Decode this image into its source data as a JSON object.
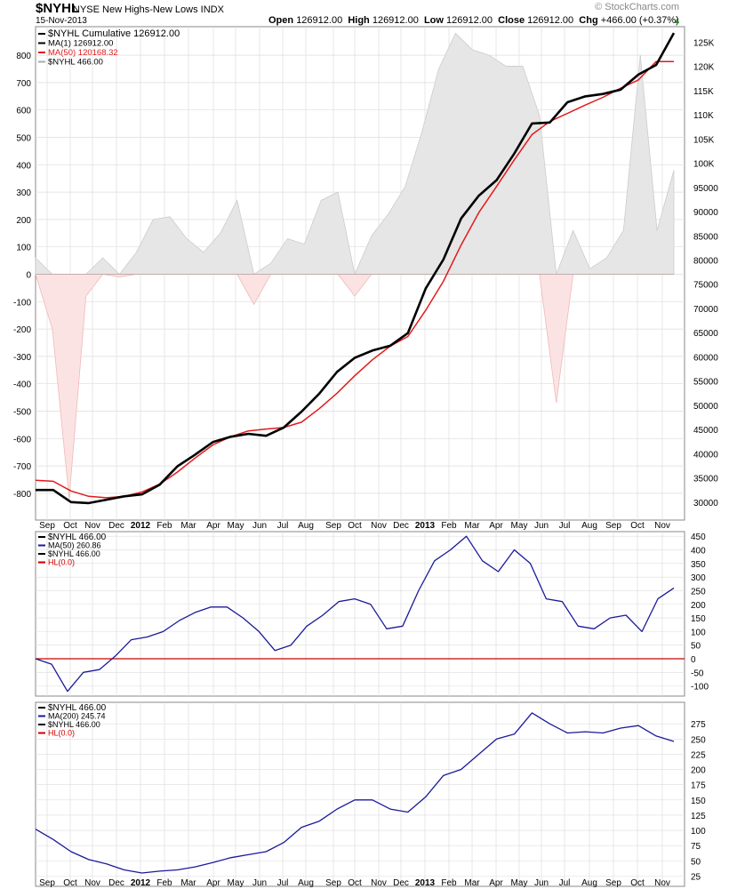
{
  "header": {
    "symbol": "$NYHL",
    "name": "NYSE New Highs-New Lows",
    "exchange": "INDX",
    "date": "15-Nov-2013",
    "brand": "© StockCharts.com",
    "quote": {
      "open_label": "Open",
      "open": "126912.00",
      "high_label": "High",
      "high": "126912.00",
      "low_label": "Low",
      "low": "126912.00",
      "close_label": "Close",
      "close": "126912.00",
      "chg_label": "Chg",
      "chg": "+466.00 (+0.37%)"
    }
  },
  "colors": {
    "cumulative": "#000000",
    "ma50": "#e31a1c",
    "hist_pos": "#cccccc",
    "hist_neg": "#f2b8b8",
    "ma_lines": "#1a1a99",
    "hl": "#cc0000",
    "grid": "#dddddd"
  },
  "chart_data": [
    {
      "type": "line",
      "legend": [
        "$NYHL  Cumulative 126912.00",
        "MA(1) 126912.00",
        "MA(50) 120168.32",
        "$NYHL  466.00"
      ],
      "x_ticks": [
        "Sep",
        "Oct",
        "Nov",
        "Dec",
        "2012",
        "Feb",
        "Mar",
        "Apr",
        "May",
        "Jun",
        "Jul",
        "Aug",
        "Sep",
        "Oct",
        "Nov",
        "Dec",
        "2013",
        "Feb",
        "Mar",
        "Apr",
        "May",
        "Jun",
        "Jul",
        "Aug",
        "Sep",
        "Oct",
        "Nov"
      ],
      "left_axis": {
        "ticks": [
          "800",
          "700",
          "600",
          "500",
          "400",
          "300",
          "200",
          "100",
          "0",
          "-100",
          "-200",
          "-300",
          "-400",
          "-500",
          "-600",
          "-700",
          "-800"
        ],
        "range": [
          -870,
          890
        ]
      },
      "right_axis": {
        "ticks": [
          "125K",
          "120K",
          "115K",
          "110K",
          "105K",
          "100K",
          "95000",
          "90000",
          "85000",
          "80000",
          "75000",
          "70000",
          "65000",
          "60000",
          "55000",
          "50000",
          "45000",
          "40000",
          "35000",
          "30000"
        ],
        "range": [
          27500,
          128000
        ]
      },
      "series": [
        {
          "name": "MA(1)",
          "axis": "right",
          "values": [
            32500,
            32500,
            30000,
            29800,
            30500,
            31200,
            31600,
            33600,
            37400,
            39800,
            42400,
            43500,
            44100,
            43700,
            45400,
            48700,
            52400,
            56900,
            59800,
            61300,
            62300,
            64900,
            74100,
            80100,
            88600,
            93300,
            96500,
            102000,
            108200,
            108400,
            112600,
            113800,
            114300,
            115200,
            118300,
            120300,
            126900
          ]
        },
        {
          "name": "MA(50)",
          "axis": "right",
          "values": [
            34500,
            34300,
            32300,
            31200,
            30900,
            31200,
            32100,
            33700,
            36200,
            39100,
            41800,
            43500,
            44700,
            45100,
            45400,
            46500,
            49300,
            52500,
            56100,
            59400,
            62200,
            64200,
            69600,
            75600,
            83100,
            89800,
            95200,
            100700,
            105900,
            108600,
            110300,
            112000,
            113600,
            115500,
            117200,
            121000,
            121000
          ]
        },
        {
          "name": "$NYHL",
          "axis": "left",
          "values": [
            60,
            -200,
            -820,
            -80,
            60,
            -10,
            80,
            200,
            210,
            130,
            80,
            150,
            270,
            -110,
            40,
            130,
            110,
            270,
            300,
            -80,
            140,
            220,
            320,
            520,
            750,
            880,
            820,
            800,
            760,
            760,
            580,
            -470,
            160,
            20,
            60,
            160,
            800,
            160,
            380
          ]
        }
      ]
    },
    {
      "type": "line",
      "legend": [
        "$NYHL  466.00",
        "MA(50) 260.86",
        "$NYHL  466.00",
        "HL(0.0)"
      ],
      "y_ticks": [
        "450",
        "400",
        "350",
        "300",
        "250",
        "200",
        "150",
        "100",
        "50",
        "0",
        "-50",
        "-100"
      ],
      "ylim": [
        -150,
        460
      ],
      "series": [
        {
          "name": "MA(50)",
          "values": [
            0,
            -20,
            -120,
            -50,
            -40,
            10,
            70,
            80,
            100,
            140,
            170,
            190,
            190,
            150,
            100,
            30,
            50,
            120,
            160,
            210,
            220,
            200,
            110,
            120,
            250,
            360,
            400,
            450,
            360,
            320,
            400,
            350,
            220,
            210,
            120,
            110,
            150,
            160,
            100,
            220,
            260
          ]
        },
        {
          "name": "HL",
          "values": [
            0,
            0
          ]
        }
      ]
    },
    {
      "type": "line",
      "legend": [
        "$NYHL  466.00",
        "MA(200) 245.74",
        "$NYHL  466.00",
        "HL(0.0)"
      ],
      "y_ticks": [
        "275",
        "250",
        "225",
        "200",
        "175",
        "150",
        "125",
        "100",
        "75",
        "50",
        "25"
      ],
      "ylim": [
        15,
        298
      ],
      "series": [
        {
          "name": "MA(200)",
          "values": [
            102,
            85,
            65,
            52,
            45,
            35,
            30,
            33,
            35,
            40,
            47,
            55,
            60,
            65,
            80,
            105,
            115,
            135,
            150,
            150,
            135,
            130,
            155,
            190,
            200,
            225,
            250,
            258,
            293,
            275,
            260,
            262,
            260,
            268,
            272,
            255,
            246
          ]
        }
      ]
    }
  ]
}
